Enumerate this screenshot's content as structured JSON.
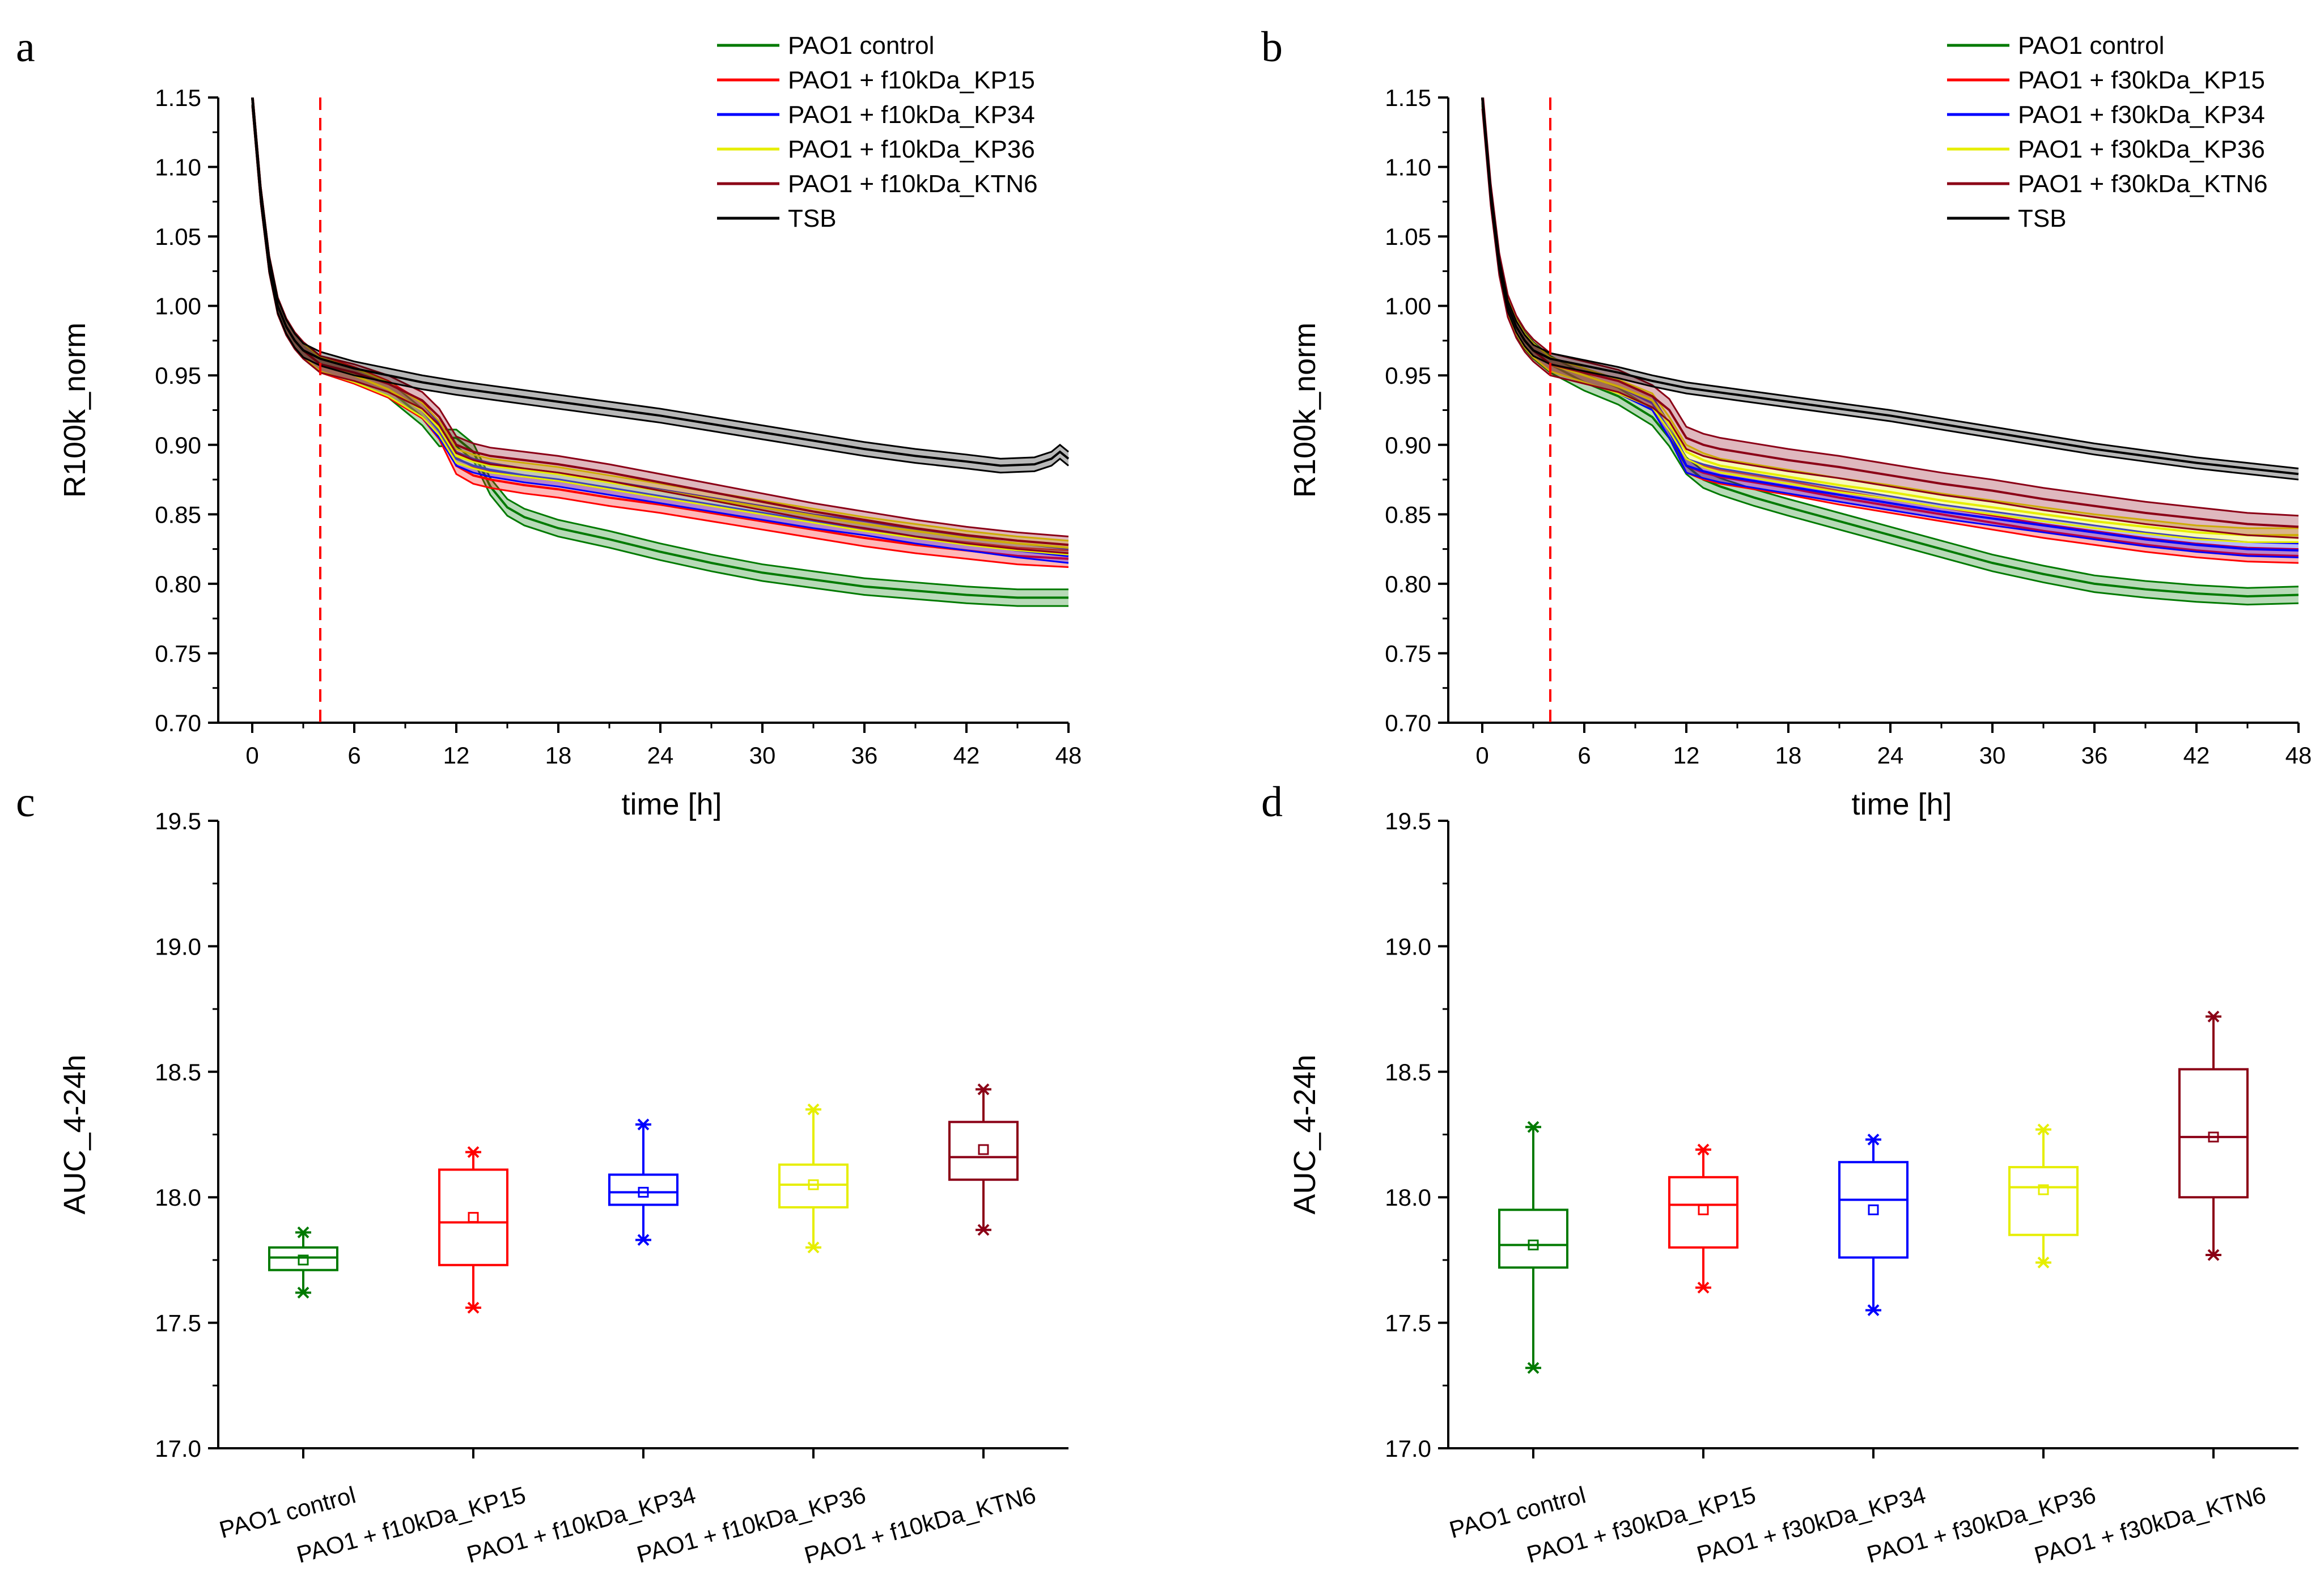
{
  "chart_data": [
    {
      "panel": "a",
      "type": "line",
      "title": "",
      "xlabel": "time [h]",
      "ylabel": "R100k_norm",
      "xlim": [
        -2,
        48
      ],
      "ylim": [
        0.7,
        1.15
      ],
      "xticks": [
        "0",
        "6",
        "12",
        "18",
        "24",
        "30",
        "36",
        "42",
        "48"
      ],
      "yticks": [
        "0.70",
        "0.75",
        "0.80",
        "0.85",
        "0.90",
        "0.95",
        "1.00",
        "1.05",
        "1.10",
        "1.15"
      ],
      "vline_x": 4,
      "vline_color": "#ff0000",
      "legend_position": "top-right",
      "series": [
        {
          "name": "PAO1 control",
          "color": "#007a00",
          "band": 0.006,
          "x": [
            0,
            0.5,
            1,
            1.5,
            2,
            2.5,
            3,
            4,
            6,
            8,
            10,
            11,
            12,
            13,
            14,
            15,
            16,
            18,
            21,
            24,
            27,
            30,
            33,
            36,
            39,
            42,
            45,
            48
          ],
          "y": [
            1.15,
            1.08,
            1.03,
            1.0,
            0.985,
            0.975,
            0.968,
            0.958,
            0.95,
            0.94,
            0.92,
            0.905,
            0.905,
            0.895,
            0.87,
            0.855,
            0.848,
            0.84,
            0.832,
            0.823,
            0.815,
            0.808,
            0.803,
            0.798,
            0.795,
            0.792,
            0.79,
            0.79
          ]
        },
        {
          "name": "PAO1 + f10kDa_KP15",
          "color": "#ff0000",
          "band": 0.006,
          "x": [
            0,
            0.5,
            1,
            1.5,
            2,
            2.5,
            3,
            4,
            6,
            8,
            10,
            11,
            12,
            13,
            14,
            16,
            18,
            21,
            24,
            27,
            30,
            33,
            36,
            39,
            42,
            45,
            48
          ],
          "y": [
            1.15,
            1.08,
            1.03,
            1.0,
            0.985,
            0.975,
            0.968,
            0.958,
            0.95,
            0.94,
            0.925,
            0.91,
            0.885,
            0.878,
            0.875,
            0.871,
            0.868,
            0.862,
            0.857,
            0.851,
            0.845,
            0.839,
            0.833,
            0.828,
            0.824,
            0.82,
            0.818
          ]
        },
        {
          "name": "PAO1 + f10kDa_KP34",
          "color": "#0000ff",
          "band": 0.005,
          "x": [
            0,
            0.5,
            1,
            1.5,
            2,
            2.5,
            3,
            4,
            6,
            8,
            10,
            11,
            12,
            13,
            14,
            16,
            18,
            21,
            24,
            27,
            30,
            33,
            36,
            39,
            42,
            45,
            48
          ],
          "y": [
            1.15,
            1.08,
            1.03,
            1.0,
            0.985,
            0.975,
            0.968,
            0.958,
            0.95,
            0.94,
            0.925,
            0.91,
            0.89,
            0.885,
            0.882,
            0.878,
            0.875,
            0.869,
            0.863,
            0.857,
            0.851,
            0.845,
            0.84,
            0.834,
            0.829,
            0.824,
            0.82
          ]
        },
        {
          "name": "PAO1 + f10kDa_KP36",
          "color": "#e6ee00",
          "band": 0.005,
          "x": [
            0,
            0.5,
            1,
            1.5,
            2,
            2.5,
            3,
            4,
            6,
            8,
            10,
            11,
            12,
            13,
            14,
            16,
            18,
            21,
            24,
            27,
            30,
            33,
            36,
            39,
            42,
            45,
            48
          ],
          "y": [
            1.15,
            1.08,
            1.03,
            1.0,
            0.985,
            0.975,
            0.968,
            0.958,
            0.95,
            0.94,
            0.925,
            0.912,
            0.892,
            0.888,
            0.885,
            0.882,
            0.879,
            0.873,
            0.867,
            0.861,
            0.855,
            0.849,
            0.843,
            0.838,
            0.833,
            0.829,
            0.826
          ]
        },
        {
          "name": "PAO1 + f10kDa_KTN6",
          "color": "#8b0016",
          "band": 0.006,
          "x": [
            0,
            0.5,
            1,
            1.5,
            2,
            2.5,
            3,
            4,
            6,
            8,
            10,
            11,
            12,
            13,
            14,
            16,
            18,
            21,
            24,
            27,
            30,
            33,
            36,
            39,
            42,
            45,
            48
          ],
          "y": [
            1.15,
            1.08,
            1.03,
            1.0,
            0.985,
            0.975,
            0.968,
            0.958,
            0.952,
            0.944,
            0.932,
            0.92,
            0.9,
            0.895,
            0.892,
            0.889,
            0.886,
            0.88,
            0.873,
            0.866,
            0.859,
            0.852,
            0.846,
            0.84,
            0.835,
            0.831,
            0.828
          ]
        },
        {
          "name": "TSB",
          "color": "#000000",
          "band": 0.005,
          "x": [
            0,
            0.5,
            1,
            1.5,
            2,
            2.5,
            3,
            4,
            6,
            8,
            10,
            12,
            15,
            18,
            21,
            24,
            27,
            30,
            33,
            36,
            39,
            42,
            44,
            46,
            47,
            47.5,
            48
          ],
          "y": [
            1.15,
            1.08,
            1.03,
            1.0,
            0.985,
            0.975,
            0.968,
            0.962,
            0.955,
            0.95,
            0.945,
            0.941,
            0.936,
            0.931,
            0.926,
            0.921,
            0.915,
            0.909,
            0.903,
            0.897,
            0.892,
            0.888,
            0.885,
            0.886,
            0.89,
            0.895,
            0.89
          ]
        }
      ]
    },
    {
      "panel": "b",
      "type": "line",
      "title": "",
      "xlabel": "time [h]",
      "ylabel": "R100k_norm",
      "xlim": [
        -2,
        48
      ],
      "ylim": [
        0.7,
        1.15
      ],
      "xticks": [
        "0",
        "6",
        "12",
        "18",
        "24",
        "30",
        "36",
        "42",
        "48"
      ],
      "yticks": [
        "0.70",
        "0.75",
        "0.80",
        "0.85",
        "0.90",
        "0.95",
        "1.00",
        "1.05",
        "1.10",
        "1.15"
      ],
      "vline_x": 4,
      "vline_color": "#ff0000",
      "legend_position": "top-right",
      "series": [
        {
          "name": "PAO1 control",
          "color": "#007a00",
          "band": 0.006,
          "x": [
            0,
            0.5,
            1,
            1.5,
            2,
            2.5,
            3,
            4,
            6,
            8,
            10,
            11,
            12,
            13,
            14,
            16,
            18,
            21,
            24,
            27,
            30,
            33,
            36,
            39,
            42,
            45,
            48
          ],
          "y": [
            1.15,
            1.08,
            1.03,
            1.0,
            0.985,
            0.975,
            0.968,
            0.958,
            0.945,
            0.935,
            0.92,
            0.905,
            0.885,
            0.875,
            0.87,
            0.862,
            0.855,
            0.845,
            0.835,
            0.825,
            0.815,
            0.807,
            0.8,
            0.796,
            0.793,
            0.791,
            0.792
          ]
        },
        {
          "name": "PAO1 + f30kDa_KP15",
          "color": "#ff0000",
          "band": 0.005,
          "x": [
            0,
            0.5,
            1,
            1.5,
            2,
            2.5,
            3,
            4,
            6,
            8,
            10,
            11,
            12,
            13,
            14,
            16,
            18,
            21,
            24,
            27,
            30,
            33,
            36,
            39,
            42,
            45,
            48
          ],
          "y": [
            1.15,
            1.08,
            1.03,
            1.0,
            0.985,
            0.975,
            0.968,
            0.958,
            0.95,
            0.942,
            0.93,
            0.91,
            0.885,
            0.88,
            0.877,
            0.873,
            0.869,
            0.862,
            0.856,
            0.85,
            0.844,
            0.838,
            0.833,
            0.828,
            0.824,
            0.821,
            0.82
          ]
        },
        {
          "name": "PAO1 + f30kDa_KP34",
          "color": "#0000ff",
          "band": 0.005,
          "x": [
            0,
            0.5,
            1,
            1.5,
            2,
            2.5,
            3,
            4,
            6,
            8,
            10,
            11,
            12,
            13,
            14,
            16,
            18,
            21,
            24,
            27,
            30,
            33,
            36,
            39,
            42,
            45,
            48
          ],
          "y": [
            1.15,
            1.08,
            1.03,
            1.0,
            0.985,
            0.975,
            0.968,
            0.958,
            0.95,
            0.942,
            0.93,
            0.91,
            0.885,
            0.881,
            0.878,
            0.874,
            0.87,
            0.864,
            0.858,
            0.852,
            0.847,
            0.842,
            0.837,
            0.832,
            0.828,
            0.825,
            0.824
          ]
        },
        {
          "name": "PAO1 + f30kDa_KP36",
          "color": "#e6ee00",
          "band": 0.005,
          "x": [
            0,
            0.5,
            1,
            1.5,
            2,
            2.5,
            3,
            4,
            6,
            8,
            10,
            11,
            12,
            13,
            14,
            16,
            18,
            21,
            24,
            27,
            30,
            33,
            36,
            39,
            42,
            45,
            48
          ],
          "y": [
            1.15,
            1.08,
            1.03,
            1.0,
            0.985,
            0.975,
            0.968,
            0.958,
            0.95,
            0.942,
            0.932,
            0.915,
            0.895,
            0.889,
            0.885,
            0.881,
            0.877,
            0.871,
            0.866,
            0.86,
            0.855,
            0.85,
            0.845,
            0.841,
            0.837,
            0.835,
            0.835
          ]
        },
        {
          "name": "PAO1 + f30kDa_KTN6",
          "color": "#8b0016",
          "band": 0.008,
          "x": [
            0,
            0.5,
            1,
            1.5,
            2,
            2.5,
            3,
            4,
            6,
            8,
            10,
            11,
            12,
            13,
            14,
            16,
            18,
            21,
            24,
            27,
            30,
            33,
            36,
            39,
            42,
            45,
            48
          ],
          "y": [
            1.15,
            1.08,
            1.03,
            1.0,
            0.985,
            0.975,
            0.968,
            0.958,
            0.952,
            0.946,
            0.935,
            0.925,
            0.905,
            0.9,
            0.897,
            0.893,
            0.889,
            0.884,
            0.878,
            0.872,
            0.867,
            0.861,
            0.856,
            0.851,
            0.847,
            0.843,
            0.841
          ]
        },
        {
          "name": "TSB",
          "color": "#000000",
          "band": 0.004,
          "x": [
            0,
            0.5,
            1,
            1.5,
            2,
            2.5,
            3,
            4,
            6,
            8,
            10,
            12,
            15,
            18,
            21,
            24,
            27,
            30,
            33,
            36,
            39,
            42,
            45,
            48
          ],
          "y": [
            1.15,
            1.08,
            1.03,
            1.0,
            0.985,
            0.975,
            0.968,
            0.962,
            0.957,
            0.952,
            0.946,
            0.941,
            0.936,
            0.931,
            0.926,
            0.921,
            0.915,
            0.909,
            0.903,
            0.897,
            0.892,
            0.887,
            0.883,
            0.879
          ]
        }
      ]
    },
    {
      "panel": "c",
      "type": "box",
      "title": "",
      "xlabel": "",
      "ylabel": "AUC_4-24h",
      "ylim": [
        17.0,
        19.5
      ],
      "yticks": [
        "17.0",
        "17.5",
        "18.0",
        "18.5",
        "19.0",
        "19.5"
      ],
      "boxes": [
        {
          "label": "PAO1 control",
          "color": "#007a00",
          "min": 17.62,
          "q1": 17.71,
          "median": 17.76,
          "q3": 17.8,
          "max": 17.86,
          "mean": 17.75
        },
        {
          "label": "PAO1 + f10kDa_KP15",
          "color": "#ff0000",
          "min": 17.56,
          "q1": 17.73,
          "median": 17.9,
          "q3": 18.11,
          "max": 18.18,
          "mean": 17.92
        },
        {
          "label": "PAO1 + f10kDa_KP34",
          "color": "#0000ff",
          "min": 17.83,
          "q1": 17.97,
          "median": 18.02,
          "q3": 18.09,
          "max": 18.29,
          "mean": 18.02
        },
        {
          "label": "PAO1 + f10kDa_KP36",
          "color": "#e6ee00",
          "min": 17.8,
          "q1": 17.96,
          "median": 18.05,
          "q3": 18.13,
          "max": 18.35,
          "mean": 18.05
        },
        {
          "label": "PAO1 + f10kDa_KTN6",
          "color": "#8b0016",
          "min": 17.87,
          "q1": 18.07,
          "median": 18.16,
          "q3": 18.3,
          "max": 18.43,
          "mean": 18.19
        }
      ]
    },
    {
      "panel": "d",
      "type": "box",
      "title": "",
      "xlabel": "",
      "ylabel": "AUC_4-24h",
      "ylim": [
        17.0,
        19.5
      ],
      "yticks": [
        "17.0",
        "17.5",
        "18.0",
        "18.5",
        "19.0",
        "19.5"
      ],
      "boxes": [
        {
          "label": "PAO1 control",
          "color": "#007a00",
          "min": 17.32,
          "q1": 17.72,
          "median": 17.81,
          "q3": 17.95,
          "max": 18.28,
          "mean": 17.81
        },
        {
          "label": "PAO1 + f30kDa_KP15",
          "color": "#ff0000",
          "min": 17.64,
          "q1": 17.8,
          "median": 17.97,
          "q3": 18.08,
          "max": 18.19,
          "mean": 17.95
        },
        {
          "label": "PAO1 + f30kDa_KP34",
          "color": "#0000ff",
          "min": 17.55,
          "q1": 17.76,
          "median": 17.99,
          "q3": 18.14,
          "max": 18.23,
          "mean": 17.95
        },
        {
          "label": "PAO1 + f30kDa_KP36",
          "color": "#e6ee00",
          "min": 17.74,
          "q1": 17.85,
          "median": 18.04,
          "q3": 18.12,
          "max": 18.27,
          "mean": 18.03
        },
        {
          "label": "PAO1 + f30kDa_KTN6",
          "color": "#8b0016",
          "min": 17.77,
          "q1": 18.0,
          "median": 18.24,
          "q3": 18.51,
          "max": 18.72,
          "mean": 18.24
        }
      ]
    }
  ]
}
